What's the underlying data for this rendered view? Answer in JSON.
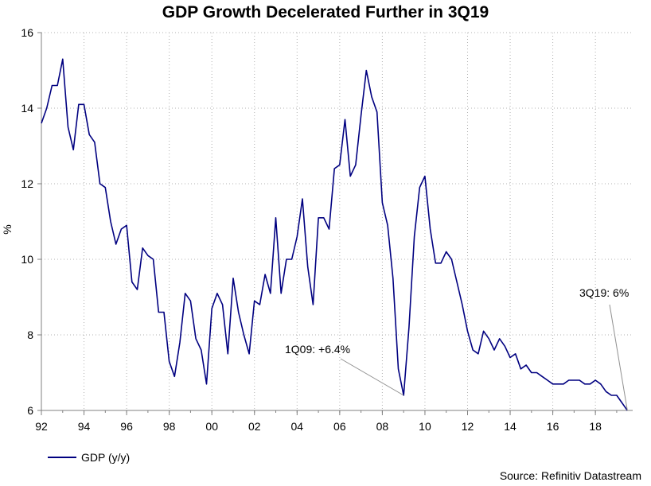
{
  "chart_data": {
    "type": "line",
    "title": "GDP Growth Decelerated Further in 3Q19",
    "ylabel": "%",
    "xlabel": "",
    "ylim": [
      6,
      16
    ],
    "yticks": [
      6,
      8,
      10,
      12,
      14,
      16
    ],
    "xlim": [
      1992.0,
      2019.75
    ],
    "xticks": [
      {
        "value": 1992,
        "label": "92"
      },
      {
        "value": 1994,
        "label": "94"
      },
      {
        "value": 1996,
        "label": "96"
      },
      {
        "value": 1998,
        "label": "98"
      },
      {
        "value": 2000,
        "label": "00"
      },
      {
        "value": 2002,
        "label": "02"
      },
      {
        "value": 2004,
        "label": "04"
      },
      {
        "value": 2006,
        "label": "06"
      },
      {
        "value": 2008,
        "label": "08"
      },
      {
        "value": 2010,
        "label": "10"
      },
      {
        "value": 2012,
        "label": "12"
      },
      {
        "value": 2014,
        "label": "14"
      },
      {
        "value": 2016,
        "label": "16"
      },
      {
        "value": 2018,
        "label": "18"
      }
    ],
    "series": [
      {
        "name": "GDP (y/y)",
        "color": "#000080",
        "start": 1992.0,
        "step": 0.25,
        "values": [
          13.6,
          14.0,
          14.6,
          14.6,
          15.3,
          13.5,
          12.9,
          14.1,
          14.1,
          13.3,
          13.1,
          12.0,
          11.9,
          11.0,
          10.4,
          10.8,
          10.9,
          9.4,
          9.2,
          10.3,
          10.1,
          10.0,
          8.6,
          8.6,
          7.3,
          6.9,
          7.8,
          9.1,
          8.9,
          7.9,
          7.6,
          6.7,
          8.7,
          9.1,
          8.8,
          7.5,
          9.5,
          8.6,
          8.0,
          7.5,
          8.9,
          8.8,
          9.6,
          9.1,
          11.1,
          9.1,
          10.0,
          10.0,
          10.6,
          11.6,
          9.8,
          8.8,
          11.1,
          11.1,
          10.8,
          12.4,
          12.5,
          13.7,
          12.2,
          12.5,
          13.8,
          15.0,
          14.3,
          13.9,
          11.5,
          10.9,
          9.5,
          7.1,
          6.4,
          8.2,
          10.6,
          11.9,
          12.2,
          10.8,
          9.9,
          9.9,
          10.2,
          10.0,
          9.4,
          8.8,
          8.1,
          7.6,
          7.5,
          8.1,
          7.9,
          7.6,
          7.9,
          7.7,
          7.4,
          7.5,
          7.1,
          7.2,
          7.0,
          7.0,
          6.9,
          6.8,
          6.7,
          6.7,
          6.7,
          6.8,
          6.8,
          6.8,
          6.7,
          6.7,
          6.8,
          6.7,
          6.5,
          6.4,
          6.4,
          6.2,
          6.0
        ]
      }
    ],
    "annotations": [
      {
        "text": "1Q09: +6.4%",
        "x": 2009.0,
        "y": 6.4
      },
      {
        "text": "3Q19: 6%",
        "x": 2019.5,
        "y": 6.0
      }
    ],
    "legend": "bottom-left",
    "source": "Source: Refinitiv Datastream"
  }
}
